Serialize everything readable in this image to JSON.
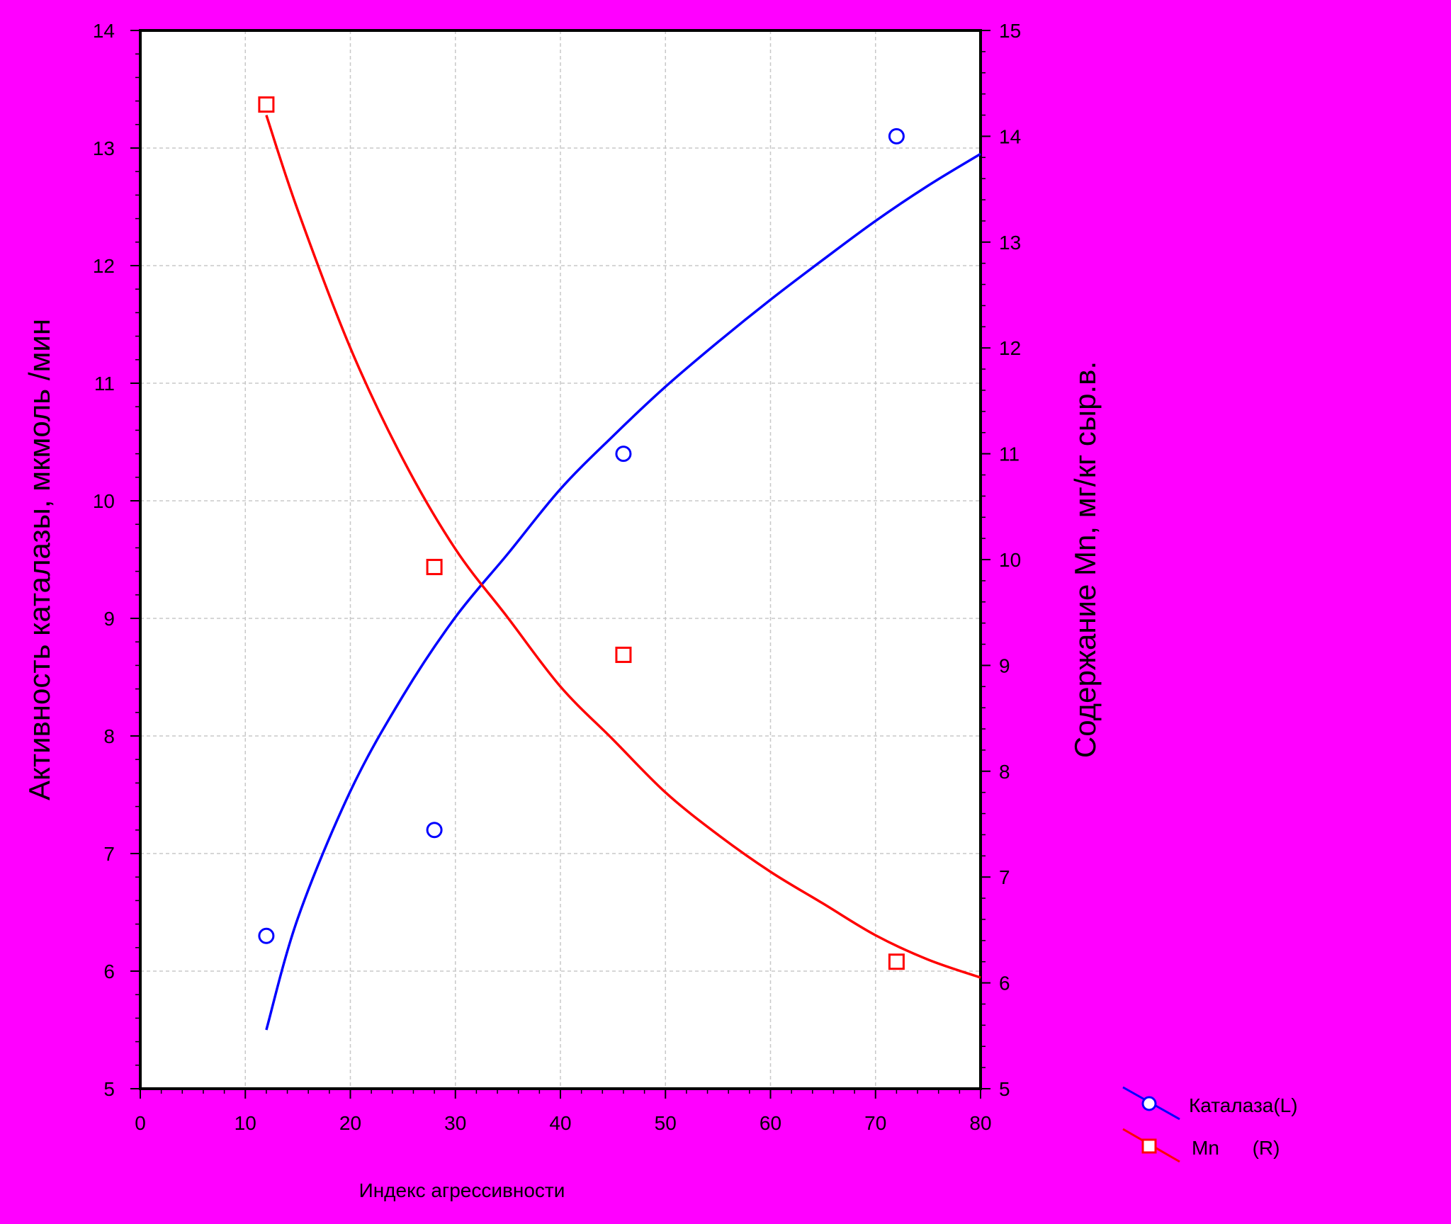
{
  "chart_data": {
    "type": "scatter",
    "xlabel": "Индекс агрессивности",
    "ylabel_left": "Активность каталазы, мкмоль /мин",
    "ylabel_right": "Содержание Mn, мг/кг сыр.в.",
    "xlim": [
      0,
      80
    ],
    "ylim_left": [
      5,
      14
    ],
    "ylim_right": [
      5,
      15
    ],
    "x_ticks": [
      "0",
      "10",
      "20",
      "30",
      "40",
      "50",
      "60",
      "70",
      "80"
    ],
    "y_ticks_left": [
      "5",
      "6",
      "7",
      "8",
      "9",
      "10",
      "11",
      "12",
      "13",
      "14"
    ],
    "y_ticks_right": [
      "5",
      "6",
      "7",
      "8",
      "9",
      "10",
      "11",
      "12",
      "13",
      "14",
      "15"
    ],
    "grid": true,
    "legend_position": "bottom-right",
    "series": [
      {
        "name": "Каталаза(L)",
        "axis": "left",
        "color": "#0000ff",
        "marker": "circle",
        "points": [
          [
            12,
            6.3
          ],
          [
            28,
            7.2
          ],
          [
            46,
            10.4
          ],
          [
            72,
            13.1
          ]
        ],
        "fit_curve": [
          [
            12,
            5.5
          ],
          [
            15,
            6.45
          ],
          [
            20,
            7.53
          ],
          [
            25,
            8.34
          ],
          [
            30,
            9.01
          ],
          [
            35,
            9.55
          ],
          [
            40,
            10.1
          ],
          [
            45,
            10.55
          ],
          [
            50,
            10.97
          ],
          [
            55,
            11.35
          ],
          [
            60,
            11.71
          ],
          [
            65,
            12.05
          ],
          [
            70,
            12.38
          ],
          [
            75,
            12.68
          ],
          [
            80,
            12.95
          ]
        ]
      },
      {
        "name": "Mn      (R)",
        "axis": "right",
        "color": "#ff0000",
        "marker": "square",
        "points": [
          [
            12,
            14.3
          ],
          [
            28,
            9.93
          ],
          [
            46,
            9.1
          ],
          [
            72,
            6.2
          ]
        ],
        "fit_curve": [
          [
            12,
            14.2
          ],
          [
            15,
            13.3
          ],
          [
            20,
            12.0
          ],
          [
            25,
            10.95
          ],
          [
            30,
            10.1
          ],
          [
            35,
            9.45
          ],
          [
            40,
            8.8
          ],
          [
            45,
            8.3
          ],
          [
            50,
            7.8
          ],
          [
            55,
            7.4
          ],
          [
            60,
            7.05
          ],
          [
            65,
            6.75
          ],
          [
            70,
            6.45
          ],
          [
            75,
            6.22
          ],
          [
            80,
            6.05
          ]
        ]
      }
    ]
  },
  "legend": {
    "items": [
      {
        "label": "Каталаза(L)",
        "color": "#0000ff",
        "marker": "circle"
      },
      {
        "label": "Mn      (R)",
        "color": "#ff0000",
        "marker": "square"
      }
    ]
  }
}
